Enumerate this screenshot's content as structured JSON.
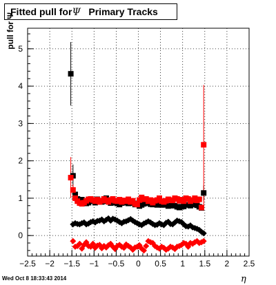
{
  "title": {
    "prefix": "Fitted pull for",
    "symbol": "Ψ",
    "suffix": "Primary Tracks"
  },
  "timestamp": "Wed Oct  8 18:33:43 2014",
  "chart_data": {
    "type": "scatter",
    "title": "Fitted pull for Ψ   Primary Tracks",
    "xlabel": "η",
    "ylabel": "pull for Ψ",
    "xlim": [
      -2.5,
      2.5
    ],
    "ylim": [
      -0.55,
      5.55
    ],
    "xticks": [
      -2.5,
      -2,
      -1.5,
      -1,
      -0.5,
      0,
      0.5,
      1,
      1.5,
      2,
      2.5
    ],
    "yticks": [
      0,
      1,
      2,
      3,
      4,
      5
    ],
    "grid": true,
    "colors": {
      "black": "#000000",
      "red": "#ff0000"
    },
    "series": [
      {
        "color": "#000000",
        "marker": "square",
        "x": [
          -1.525,
          -1.475,
          -1.425,
          -1.375,
          -1.325,
          -1.275,
          -1.225,
          -1.175,
          -1.125,
          -1.075,
          -1.025,
          -0.975,
          -0.925,
          -0.875,
          -0.825,
          -0.775,
          -0.725,
          -0.675,
          -0.625,
          -0.575,
          -0.525,
          -0.475,
          -0.425,
          -0.375,
          -0.325,
          -0.275,
          -0.225,
          -0.175,
          -0.125,
          -0.075,
          -0.025,
          0.025,
          0.075,
          0.125,
          0.175,
          0.225,
          0.275,
          0.325,
          0.375,
          0.425,
          0.475,
          0.525,
          0.575,
          0.625,
          0.675,
          0.725,
          0.775,
          0.825,
          0.875,
          0.925,
          0.975,
          1.025,
          1.075,
          1.125,
          1.175,
          1.225,
          1.275,
          1.325,
          1.375,
          1.425,
          1.475
        ],
        "y": [
          4.33,
          1.6,
          1.1,
          0.98,
          0.92,
          0.96,
          0.92,
          0.86,
          0.88,
          0.92,
          0.95,
          0.88,
          0.97,
          0.93,
          0.9,
          0.92,
          1.0,
          0.95,
          0.87,
          0.88,
          0.9,
          0.86,
          0.83,
          0.87,
          0.88,
          0.93,
          0.86,
          0.89,
          0.87,
          0.83,
          0.86,
          0.79,
          0.82,
          0.85,
          0.87,
          0.88,
          0.84,
          0.83,
          0.85,
          0.82,
          0.86,
          0.82,
          0.82,
          0.83,
          0.79,
          0.8,
          0.82,
          0.8,
          0.77,
          0.75,
          0.77,
          0.78,
          0.82,
          0.82,
          0.8,
          0.85,
          0.83,
          0.81,
          0.77,
          0.74,
          1.14
        ],
        "err": [
          0.85,
          0.3,
          0.1,
          0.06,
          0.05,
          0.05,
          0.05,
          0.05,
          0.05,
          0.05,
          0.05,
          0.05,
          0.05,
          0.05,
          0.05,
          0.05,
          0.05,
          0.05,
          0.05,
          0.05,
          0.05,
          0.05,
          0.05,
          0.05,
          0.05,
          0.05,
          0.05,
          0.05,
          0.05,
          0.05,
          0.05,
          0.05,
          0.05,
          0.05,
          0.05,
          0.05,
          0.05,
          0.05,
          0.05,
          0.05,
          0.05,
          0.05,
          0.05,
          0.05,
          0.05,
          0.05,
          0.05,
          0.05,
          0.05,
          0.05,
          0.05,
          0.05,
          0.05,
          0.05,
          0.05,
          0.05,
          0.05,
          0.05,
          0.05,
          0.05,
          0.2
        ]
      },
      {
        "color": "#ff0000",
        "marker": "square",
        "x": [
          -1.525,
          -1.475,
          -1.425,
          -1.375,
          -1.325,
          -1.275,
          -1.225,
          -1.175,
          -1.125,
          -1.075,
          -1.025,
          -0.975,
          -0.925,
          -0.875,
          -0.825,
          -0.775,
          -0.725,
          -0.675,
          -0.625,
          -0.575,
          -0.525,
          -0.475,
          -0.425,
          -0.375,
          -0.325,
          -0.275,
          -0.225,
          -0.175,
          -0.125,
          -0.075,
          -0.025,
          0.025,
          0.075,
          0.125,
          0.175,
          0.225,
          0.275,
          0.325,
          0.375,
          0.425,
          0.475,
          0.525,
          0.575,
          0.625,
          0.675,
          0.725,
          0.775,
          0.825,
          0.875,
          0.925,
          0.975,
          1.025,
          1.075,
          1.125,
          1.175,
          1.225,
          1.275,
          1.325,
          1.375,
          1.425,
          1.475
        ],
        "y": [
          1.55,
          1.22,
          1.0,
          0.92,
          0.87,
          0.85,
          0.88,
          0.93,
          0.97,
          0.98,
          0.95,
          0.92,
          0.96,
          0.9,
          0.93,
          0.98,
          0.94,
          0.9,
          0.95,
          0.98,
          0.93,
          0.92,
          0.96,
          0.9,
          0.94,
          0.92,
          0.97,
          0.9,
          0.93,
          0.85,
          0.83,
          0.95,
          1.02,
          0.97,
          0.98,
          0.92,
          0.95,
          0.88,
          0.93,
          0.95,
          1.0,
          0.92,
          0.9,
          0.93,
          0.97,
          0.95,
          0.94,
          1.0,
          0.98,
          0.93,
          0.96,
          0.92,
          1.0,
          0.98,
          0.92,
          0.95,
          1.0,
          0.94,
          0.97,
          0.75,
          2.43
        ],
        "err": [
          0.55,
          0.15,
          0.08,
          0.05,
          0.05,
          0.05,
          0.05,
          0.05,
          0.05,
          0.05,
          0.05,
          0.05,
          0.05,
          0.05,
          0.05,
          0.05,
          0.05,
          0.05,
          0.05,
          0.05,
          0.05,
          0.05,
          0.05,
          0.05,
          0.05,
          0.05,
          0.05,
          0.05,
          0.05,
          0.05,
          0.05,
          0.05,
          0.05,
          0.05,
          0.05,
          0.05,
          0.05,
          0.05,
          0.05,
          0.05,
          0.05,
          0.05,
          0.05,
          0.05,
          0.05,
          0.05,
          0.05,
          0.05,
          0.05,
          0.05,
          0.05,
          0.05,
          0.05,
          0.05,
          0.05,
          0.05,
          0.05,
          0.05,
          0.05,
          0.05,
          1.6
        ]
      },
      {
        "color": "#000000",
        "marker": "diamond",
        "x": [
          -1.475,
          -1.425,
          -1.375,
          -1.325,
          -1.275,
          -1.225,
          -1.175,
          -1.125,
          -1.075,
          -1.025,
          -0.975,
          -0.925,
          -0.875,
          -0.825,
          -0.775,
          -0.725,
          -0.675,
          -0.625,
          -0.575,
          -0.525,
          -0.475,
          -0.425,
          -0.375,
          -0.325,
          -0.275,
          -0.225,
          -0.175,
          -0.125,
          -0.075,
          -0.025,
          0.025,
          0.075,
          0.125,
          0.175,
          0.225,
          0.275,
          0.325,
          0.375,
          0.425,
          0.475,
          0.525,
          0.575,
          0.625,
          0.675,
          0.725,
          0.775,
          0.825,
          0.875,
          0.925,
          0.975,
          1.025,
          1.075,
          1.125,
          1.175,
          1.225,
          1.275,
          1.325,
          1.375,
          1.425,
          1.475
        ],
        "y": [
          0.3,
          0.33,
          0.31,
          0.3,
          0.33,
          0.35,
          0.3,
          0.32,
          0.36,
          0.38,
          0.35,
          0.39,
          0.4,
          0.43,
          0.38,
          0.42,
          0.46,
          0.4,
          0.45,
          0.43,
          0.4,
          0.36,
          0.33,
          0.37,
          0.38,
          0.41,
          0.44,
          0.4,
          0.36,
          0.33,
          0.3,
          0.28,
          0.32,
          0.35,
          0.38,
          0.35,
          0.31,
          0.28,
          0.29,
          0.33,
          0.3,
          0.28,
          0.34,
          0.37,
          0.31,
          0.3,
          0.35,
          0.4,
          0.38,
          0.36,
          0.3,
          0.25,
          0.24,
          0.27,
          0.22,
          0.2,
          0.18,
          0.15,
          0.1,
          0.06
        ],
        "err": [
          0.05,
          0.04,
          0.04,
          0.04,
          0.04,
          0.04,
          0.04,
          0.04,
          0.04,
          0.04,
          0.04,
          0.04,
          0.04,
          0.04,
          0.04,
          0.04,
          0.04,
          0.04,
          0.04,
          0.04,
          0.04,
          0.04,
          0.04,
          0.04,
          0.04,
          0.04,
          0.04,
          0.04,
          0.04,
          0.04,
          0.04,
          0.04,
          0.04,
          0.04,
          0.04,
          0.04,
          0.04,
          0.04,
          0.04,
          0.04,
          0.04,
          0.04,
          0.04,
          0.04,
          0.04,
          0.04,
          0.04,
          0.04,
          0.04,
          0.04,
          0.04,
          0.04,
          0.04,
          0.04,
          0.04,
          0.04,
          0.04,
          0.04,
          0.04,
          0.04
        ]
      },
      {
        "color": "#ff0000",
        "marker": "diamond",
        "x": [
          -1.475,
          -1.425,
          -1.375,
          -1.325,
          -1.275,
          -1.225,
          -1.175,
          -1.125,
          -1.075,
          -1.025,
          -0.975,
          -0.925,
          -0.875,
          -0.825,
          -0.775,
          -0.725,
          -0.675,
          -0.625,
          -0.575,
          -0.525,
          -0.475,
          -0.425,
          -0.375,
          -0.325,
          -0.275,
          -0.225,
          -0.175,
          -0.125,
          -0.075,
          -0.025,
          0.025,
          0.075,
          0.125,
          0.175,
          0.225,
          0.275,
          0.325,
          0.375,
          0.425,
          0.475,
          0.525,
          0.575,
          0.625,
          0.675,
          0.725,
          0.775,
          0.825,
          0.875,
          0.925,
          0.975,
          1.025,
          1.075,
          1.125,
          1.175,
          1.225,
          1.275,
          1.325,
          1.375,
          1.425,
          1.475
        ],
        "y": [
          -0.15,
          -0.3,
          -0.28,
          -0.22,
          -0.35,
          -0.25,
          -0.18,
          -0.28,
          -0.3,
          -0.22,
          -0.33,
          -0.27,
          -0.25,
          -0.34,
          -0.28,
          -0.32,
          -0.26,
          -0.22,
          -0.3,
          -0.36,
          -0.28,
          -0.25,
          -0.3,
          -0.33,
          -0.24,
          -0.28,
          -0.32,
          -0.38,
          -0.32,
          -0.3,
          -0.26,
          -0.35,
          -0.4,
          -0.28,
          -0.15,
          -0.18,
          -0.2,
          -0.28,
          -0.32,
          -0.35,
          -0.3,
          -0.33,
          -0.38,
          -0.35,
          -0.3,
          -0.32,
          -0.36,
          -0.3,
          -0.28,
          -0.25,
          -0.2,
          -0.22,
          -0.3,
          -0.2,
          -0.22,
          -0.18,
          -0.15,
          -0.2,
          -0.18,
          -0.15
        ],
        "err": [
          0.05,
          0.04,
          0.04,
          0.04,
          0.04,
          0.04,
          0.04,
          0.04,
          0.04,
          0.04,
          0.04,
          0.04,
          0.04,
          0.04,
          0.04,
          0.04,
          0.04,
          0.04,
          0.04,
          0.04,
          0.04,
          0.04,
          0.04,
          0.04,
          0.04,
          0.04,
          0.04,
          0.04,
          0.04,
          0.04,
          0.04,
          0.04,
          0.04,
          0.04,
          0.04,
          0.04,
          0.04,
          0.04,
          0.04,
          0.04,
          0.04,
          0.04,
          0.04,
          0.04,
          0.04,
          0.04,
          0.04,
          0.04,
          0.04,
          0.04,
          0.04,
          0.04,
          0.04,
          0.04,
          0.04,
          0.04,
          0.04,
          0.04,
          0.04,
          0.04
        ]
      }
    ]
  }
}
